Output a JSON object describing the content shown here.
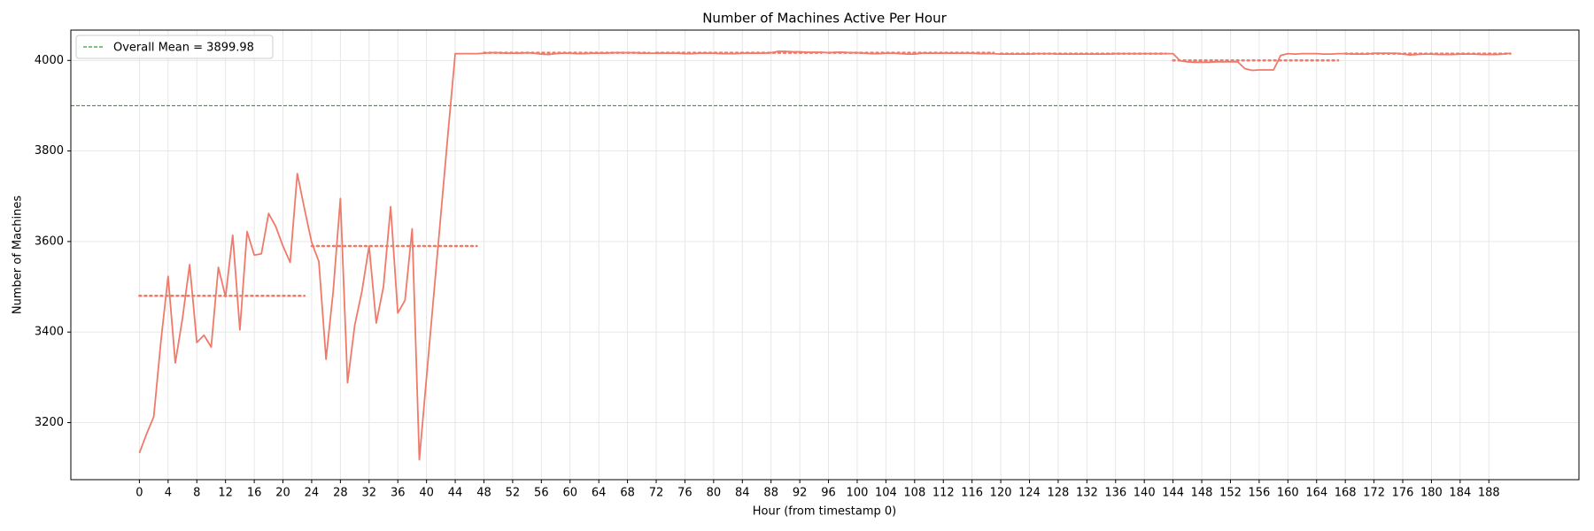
{
  "chart_data": {
    "type": "line",
    "title": "Number of Machines Active Per Hour",
    "x_label": "Hour (from timestamp 0)",
    "y_label": "Number of Machines",
    "x": [
      0,
      1,
      2,
      3,
      4,
      5,
      6,
      7,
      8,
      9,
      10,
      11,
      12,
      13,
      14,
      15,
      16,
      17,
      18,
      19,
      20,
      21,
      22,
      23,
      24,
      25,
      26,
      27,
      28,
      29,
      30,
      31,
      32,
      33,
      34,
      35,
      36,
      37,
      38,
      39,
      40,
      41,
      42,
      43,
      44,
      45,
      46,
      47,
      48,
      49,
      50,
      51,
      52,
      53,
      54,
      55,
      56,
      57,
      58,
      59,
      60,
      61,
      62,
      63,
      64,
      65,
      66,
      67,
      68,
      69,
      70,
      71,
      72,
      73,
      74,
      75,
      76,
      77,
      78,
      79,
      80,
      81,
      82,
      83,
      84,
      85,
      86,
      87,
      88,
      89,
      90,
      91,
      92,
      93,
      94,
      95,
      96,
      97,
      98,
      99,
      100,
      101,
      102,
      103,
      104,
      105,
      106,
      107,
      108,
      109,
      110,
      111,
      112,
      113,
      114,
      115,
      116,
      117,
      118,
      119,
      120,
      121,
      122,
      123,
      124,
      125,
      126,
      127,
      128,
      129,
      130,
      131,
      132,
      133,
      134,
      135,
      136,
      137,
      138,
      139,
      140,
      141,
      142,
      143,
      144,
      145,
      146,
      147,
      148,
      149,
      150,
      151,
      152,
      153,
      154,
      155,
      156,
      157,
      158,
      159,
      160,
      161,
      162,
      163,
      164,
      165,
      166,
      167,
      168,
      169,
      170,
      171,
      172,
      173,
      174,
      175,
      176,
      177,
      178,
      179,
      180,
      181,
      182,
      183,
      184,
      185,
      186,
      187,
      188,
      189,
      190,
      191
    ],
    "series": [
      {
        "color": "#f07a6a",
        "values": [
          3133,
          3175,
          3213,
          3380,
          3523,
          3332,
          3430,
          3549,
          3377,
          3393,
          3367,
          3543,
          3478,
          3614,
          3405,
          3622,
          3570,
          3573,
          3662,
          3633,
          3590,
          3554,
          3750,
          3672,
          3598,
          3556,
          3340,
          3490,
          3695,
          3288,
          3415,
          3490,
          3590,
          3420,
          3500,
          3677,
          3442,
          3470,
          3628,
          3118,
          3300,
          3480,
          3660,
          3840,
          4015,
          4015,
          4015,
          4015,
          4016,
          4017,
          4017,
          4016,
          4016,
          4016,
          4017,
          4016,
          4014,
          4013,
          4015,
          4016,
          4016,
          4015,
          4015,
          4016,
          4016,
          4016,
          4017,
          4017,
          4017,
          4017,
          4016,
          4016,
          4016,
          4016,
          4016,
          4016,
          4015,
          4015,
          4016,
          4016,
          4016,
          4015,
          4015,
          4015,
          4016,
          4016,
          4016,
          4016,
          4017,
          4020,
          4020,
          4019,
          4019,
          4018,
          4018,
          4018,
          4017,
          4018,
          4018,
          4017,
          4017,
          4016,
          4015,
          4015,
          4016,
          4016,
          4015,
          4014,
          4014,
          4016,
          4016,
          4016,
          4016,
          4016,
          4016,
          4016,
          4016,
          4015,
          4015,
          4015,
          4014,
          4014,
          4014,
          4014,
          4014,
          4015,
          4015,
          4015,
          4014,
          4014,
          4014,
          4014,
          4014,
          4014,
          4014,
          4014,
          4015,
          4015,
          4015,
          4015,
          4015,
          4015,
          4015,
          4015,
          4015,
          3999,
          3997,
          3996,
          3996,
          3996,
          3997,
          3997,
          3997,
          3997,
          3982,
          3978,
          3979,
          3979,
          3979,
          4011,
          4015,
          4014,
          4015,
          4015,
          4015,
          4014,
          4014,
          4015,
          4015,
          4014,
          4014,
          4014,
          4016,
          4016,
          4016,
          4016,
          4014,
          4012,
          4013,
          4014,
          4014,
          4013,
          4013,
          4013,
          4014,
          4014,
          4014,
          4013,
          4013,
          4013,
          4014,
          4016
        ]
      }
    ],
    "day_means": [
      {
        "x": [
          0,
          23
        ],
        "value": 3480
      },
      {
        "x": [
          24,
          47
        ],
        "value": 3590
      },
      {
        "x": [
          48,
          71
        ],
        "value": 4017
      },
      {
        "x": [
          72,
          95
        ],
        "value": 4017
      },
      {
        "x": [
          96,
          119
        ],
        "value": 4017
      },
      {
        "x": [
          120,
          143
        ],
        "value": 4015
      },
      {
        "x": [
          144,
          167
        ],
        "value": 4000
      },
      {
        "x": [
          168,
          191
        ],
        "value": 4015
      }
    ],
    "day_means_color": "#f07a6a",
    "mean_line": {
      "value": 3899.98,
      "label": "Overall Mean = 3899.98",
      "color": "#2ca02c"
    },
    "legend": "upper left",
    "xlim": [
      -9.55,
      200.55
    ],
    "ylim": [
      3074,
      4067
    ],
    "xticks": [
      0,
      4,
      8,
      12,
      16,
      20,
      24,
      28,
      32,
      36,
      40,
      44,
      48,
      52,
      56,
      60,
      64,
      68,
      72,
      76,
      80,
      84,
      88,
      92,
      96,
      100,
      104,
      108,
      112,
      116,
      120,
      124,
      128,
      132,
      136,
      140,
      144,
      148,
      152,
      156,
      160,
      164,
      168,
      172,
      176,
      180,
      184,
      188
    ],
    "yticks": [
      3200,
      3400,
      3600,
      3800,
      4000
    ],
    "grid": true
  }
}
